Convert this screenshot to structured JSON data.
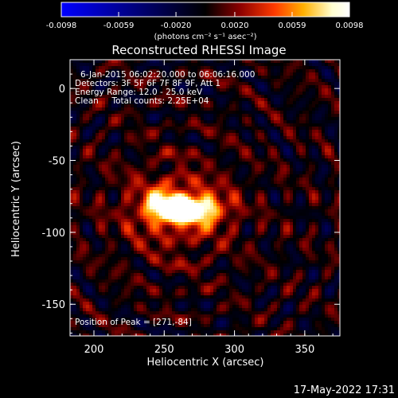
{
  "chart_data": {
    "type": "heatmap",
    "title": "Reconstructed RHESSI Image",
    "xlabel": "Heliocentric X (arcsec)",
    "ylabel": "Heliocentric Y (arcsec)",
    "xlim": [
      183,
      375
    ],
    "ylim": [
      -172,
      20
    ],
    "x_ticks": [
      200,
      250,
      300,
      350
    ],
    "y_ticks": [
      0,
      -50,
      -100,
      -150
    ],
    "grid": false,
    "colorbar": {
      "label": "(photons cm⁻² s⁻¹ asec⁻²)",
      "placement": "top",
      "range": [
        -0.0098,
        0.0098
      ],
      "ticks": [
        "-0.0098",
        "-0.0059",
        "-0.0020",
        "0.0020",
        "0.0059",
        "0.0098"
      ],
      "colormap": [
        "#0000ff",
        "#000000",
        "#8b0000",
        "#ff3a00",
        "#ffb000",
        "#ffffd0",
        "#ffffff"
      ]
    },
    "annotations": [
      "6-Jan-2015 06:02:20.000 to 06:06:16.000",
      "Detectors: 3F 5F 6F 7F 8F 9F, Att 1",
      "Energy Range: 12.0 - 25.0 keV",
      "Clean     Total counts: 2.25E+04",
      "Position of Peak = [271,-84]"
    ],
    "peak": {
      "x": 271,
      "y": -84,
      "value": 0.0098
    },
    "sources": [
      {
        "x": 271,
        "y": -84,
        "sx": 14,
        "sy": 7,
        "amp": 0.0098
      },
      {
        "x": 250,
        "y": -82,
        "sx": 11,
        "sy": 8,
        "amp": 0.0072
      },
      {
        "x": 258,
        "y": -85,
        "sx": 30,
        "sy": 24,
        "amp": 0.0028
      }
    ]
  },
  "timestamp": "17-May-2022 17:31"
}
